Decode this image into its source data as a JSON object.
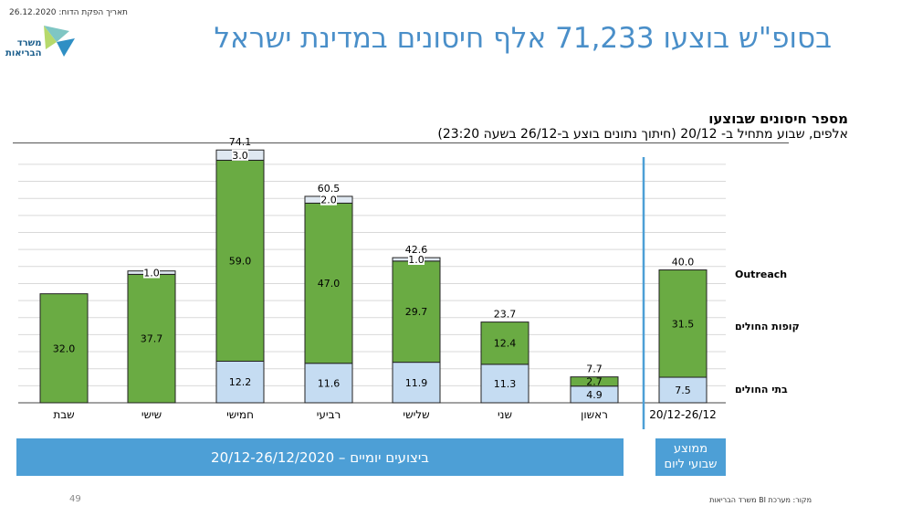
{
  "header": {
    "publish_date": "תאריך הפקת הדוח: 26.12.2020",
    "logo_text_1": "משרד",
    "logo_text_2": "הבריאות",
    "title": "בסופ\"ש בוצעו 71,233 אלף חיסונים במדינת ישראל"
  },
  "chart_data": {
    "type": "bar",
    "title": "מספר חיסונים שבוצעו",
    "subtitle": "אלפים, שבוע מתחיל ב- 20/12 (חיתוך נתונים בוצע ב-26/12 בשעה 23:20)",
    "categories": [
      "שבת",
      "שישי",
      "חמישי",
      "רביעי",
      "שלישי",
      "שני",
      "ראשון",
      "20/12-26/12"
    ],
    "series": [
      {
        "name": "בתי החולים",
        "values": [
          null,
          null,
          12.2,
          11.6,
          11.9,
          11.3,
          4.9,
          7.5
        ],
        "color": "#c5dcf2"
      },
      {
        "name": "קופות החולים",
        "values": [
          32.0,
          37.7,
          59.0,
          47.0,
          29.7,
          12.4,
          2.7,
          31.5
        ],
        "color": "#6aab43"
      },
      {
        "name": "Outreach",
        "values": [
          null,
          1.0,
          3.0,
          2.0,
          1.0,
          null,
          null,
          null
        ],
        "color": "#dfe8f1"
      }
    ],
    "totals": [
      null,
      null,
      74.1,
      60.5,
      42.6,
      23.7,
      7.7,
      40.0
    ],
    "ylim": [
      0,
      80
    ],
    "grid": true,
    "legend": "right"
  },
  "bands": {
    "daily": "ביצועים יומיים – 20/12-26/12/2020",
    "weekly_line1": "ממוצע",
    "weekly_line2": "שבועי ליום"
  },
  "footer": {
    "page_number": "49",
    "source": "מקור: מערכת BI משרד הבריאות"
  }
}
